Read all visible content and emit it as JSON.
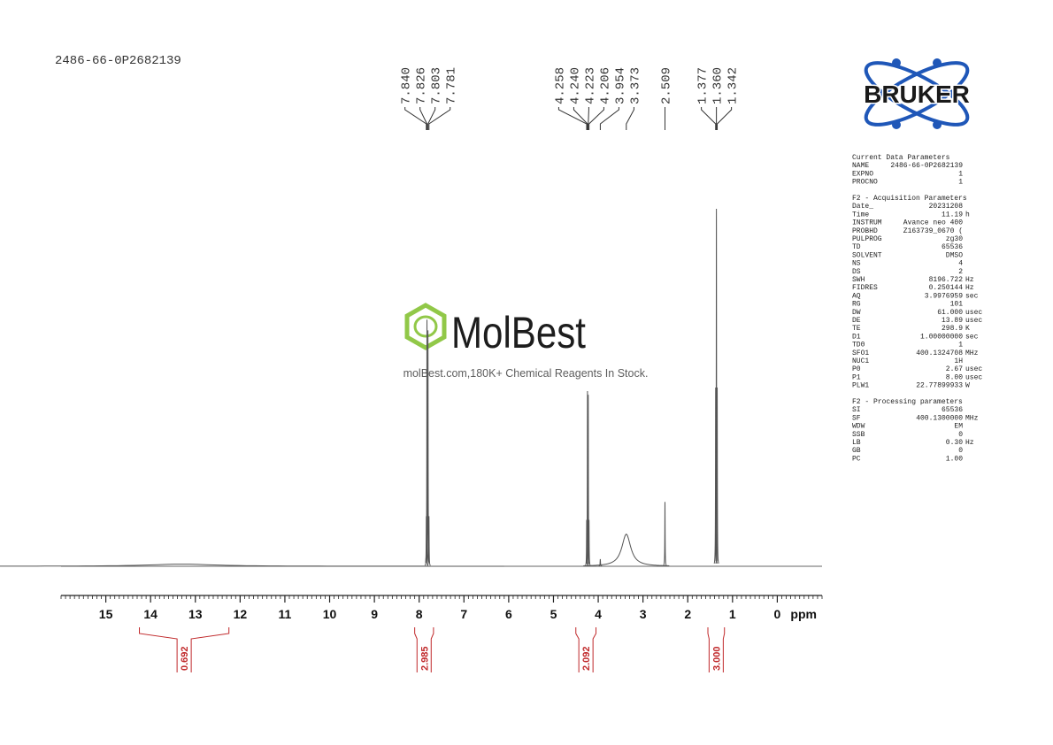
{
  "sample_id": "2486-66-0P2682139",
  "logo": "BRUKER",
  "watermark": {
    "brand": "MolBest",
    "tagline": "molBest.com,180K+ Chemical Reagents In Stock."
  },
  "chart_data": {
    "type": "nmr",
    "x_unit": "ppm",
    "xlim": [
      16,
      -1
    ],
    "xticks": [
      15,
      14,
      13,
      12,
      11,
      10,
      9,
      8,
      7,
      6,
      5,
      4,
      3,
      2,
      1,
      0
    ],
    "minor_tick_step": 0.1,
    "peak_label_groups": [
      [
        {
          "value": 7.84,
          "label": "7.840"
        },
        {
          "value": 7.826,
          "label": "7.826"
        },
        {
          "value": 7.803,
          "label": "7.803"
        },
        {
          "value": 7.781,
          "label": "7.781"
        }
      ],
      [
        {
          "value": 4.258,
          "label": "4.258"
        },
        {
          "value": 4.24,
          "label": "4.240"
        },
        {
          "value": 4.223,
          "label": "4.223"
        },
        {
          "value": 4.206,
          "label": "4.206"
        },
        {
          "value": 3.954,
          "label": "3.954"
        },
        {
          "value": 3.373,
          "label": "3.373"
        }
      ],
      [
        {
          "value": 2.509,
          "label": "2.509"
        }
      ],
      [
        {
          "value": 1.377,
          "label": "1.377"
        },
        {
          "value": 1.36,
          "label": "1.360"
        },
        {
          "value": 1.342,
          "label": "1.342"
        }
      ]
    ],
    "peaks": [
      {
        "ppm": 13.3,
        "intensity": 0.6,
        "width": 0.9
      },
      {
        "ppm": 7.84,
        "intensity": 14,
        "width": 0.004
      },
      {
        "ppm": 7.826,
        "intensity": 69,
        "width": 0.004
      },
      {
        "ppm": 7.803,
        "intensity": 66,
        "width": 0.004
      },
      {
        "ppm": 7.781,
        "intensity": 14,
        "width": 0.004
      },
      {
        "ppm": 4.258,
        "intensity": 13,
        "width": 0.004
      },
      {
        "ppm": 4.24,
        "intensity": 49,
        "width": 0.004
      },
      {
        "ppm": 4.223,
        "intensity": 48,
        "width": 0.004
      },
      {
        "ppm": 4.206,
        "intensity": 13,
        "width": 0.004
      },
      {
        "ppm": 3.954,
        "intensity": 2,
        "width": 0.005
      },
      {
        "ppm": 3.373,
        "intensity": 9,
        "width": 0.12
      },
      {
        "ppm": 2.509,
        "intensity": 18,
        "width": 0.004
      },
      {
        "ppm": 1.377,
        "intensity": 50,
        "width": 0.004
      },
      {
        "ppm": 1.36,
        "intensity": 100,
        "width": 0.004
      },
      {
        "ppm": 1.342,
        "intensity": 50,
        "width": 0.004
      }
    ],
    "integrals": [
      {
        "from": 14.25,
        "to": 12.25,
        "value": {
          "value": 0.692,
          "label": "0.692"
        }
      },
      {
        "from": 8.1,
        "to": 7.68,
        "value": {
          "value": 2.985,
          "label": "2.985"
        }
      },
      {
        "from": 4.5,
        "to": 4.05,
        "value": {
          "value": 2.092,
          "label": "2.092"
        }
      },
      {
        "from": 1.55,
        "to": 1.18,
        "value": {
          "value": 3.0,
          "label": "3.000"
        }
      }
    ]
  },
  "parameters": [
    {
      "title": "Current Data Parameters",
      "rows": [
        [
          "NAME",
          "2486-66-0P2682139"
        ],
        [
          "EXPNO",
          "1"
        ],
        [
          "PROCNO",
          "1"
        ]
      ]
    },
    {
      "title": "F2 - Acquisition Parameters",
      "rows": [
        [
          "Date_",
          "20231208"
        ],
        [
          "Time",
          "11.19",
          "h"
        ],
        [
          "INSTRUM",
          "Avance neo 400"
        ],
        [
          "PROBHD",
          "Z163739_0670 ("
        ],
        [
          "PULPROG",
          "zg30"
        ],
        [
          "TD",
          "65536"
        ],
        [
          "SOLVENT",
          "DMSO"
        ],
        [
          "NS",
          "4"
        ],
        [
          "DS",
          "2"
        ],
        [
          "SWH",
          "8196.722",
          "Hz"
        ],
        [
          "FIDRES",
          "0.250144",
          "Hz"
        ],
        [
          "AQ",
          "3.9976959",
          "sec"
        ],
        [
          "RG",
          "101"
        ],
        [
          "DW",
          "61.000",
          "usec"
        ],
        [
          "DE",
          "13.89",
          "usec"
        ],
        [
          "TE",
          "298.9",
          "K"
        ],
        [
          "D1",
          "1.00000000",
          "sec"
        ],
        [
          "TD0",
          "1"
        ],
        [
          "SFO1",
          "400.1324708",
          "MHz"
        ],
        [
          "NUC1",
          "1H"
        ],
        [
          "P0",
          "2.67",
          "usec"
        ],
        [
          "P1",
          "8.00",
          "usec"
        ],
        [
          "PLW1",
          "22.77899933",
          "W"
        ]
      ]
    },
    {
      "title": "F2 - Processing parameters",
      "rows": [
        [
          "SI",
          "65536"
        ],
        [
          "SF",
          "400.1300000",
          "MHz"
        ],
        [
          "WDW",
          "EM"
        ],
        [
          "SSB",
          "0"
        ],
        [
          "LB",
          "0.30",
          "Hz"
        ],
        [
          "GB",
          "0"
        ],
        [
          "PC",
          "1.00"
        ]
      ]
    }
  ]
}
